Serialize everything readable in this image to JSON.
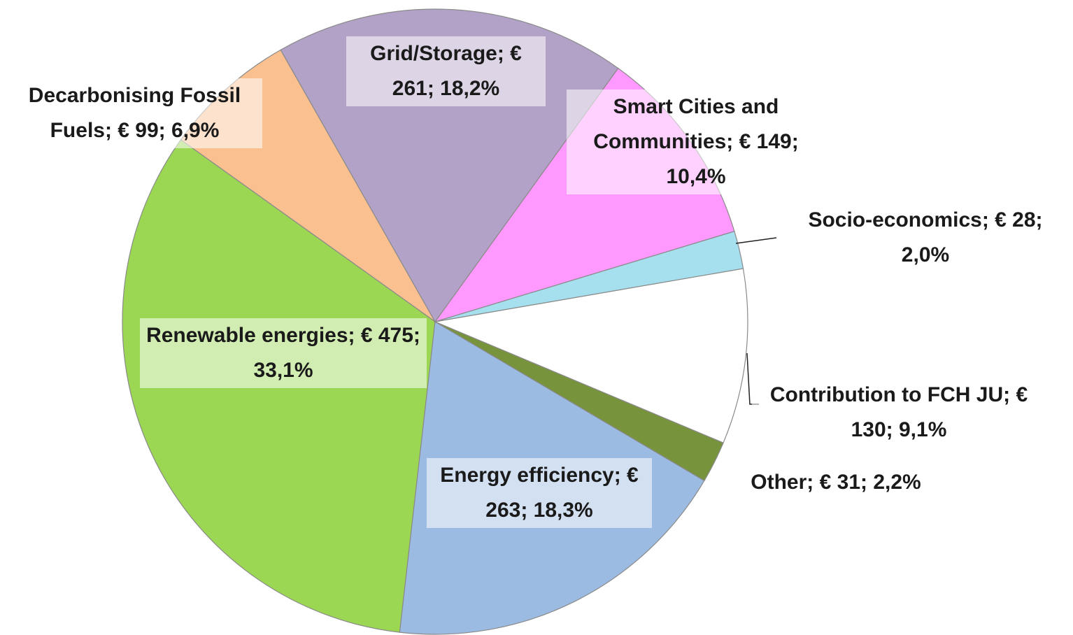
{
  "chart_data": {
    "type": "pie",
    "values": [
      261,
      149,
      28,
      130,
      31,
      263,
      475,
      99
    ],
    "value_labels": [
      "Grid/Storage; € 261; 18,2%",
      "Smart Cities and Communities; € 149; 10,4%",
      "Socio-economics; € 28; 2,0%",
      "Contribution to FCH JU; € 130; 9,1%",
      "Other; € 31; 2,2%",
      "Energy efficiency; € 263; 18,3%",
      "Renewable energies; € 475; 33,1%",
      "Decarbonising Fossil Fuels; € 99; 6,9%"
    ],
    "colors": [
      "#b3a2c7",
      "#ff99ff",
      "#a6e0ee",
      "#ffffff",
      "#77933c",
      "#9cbbe3",
      "#9bd752",
      "#fac090"
    ]
  }
}
